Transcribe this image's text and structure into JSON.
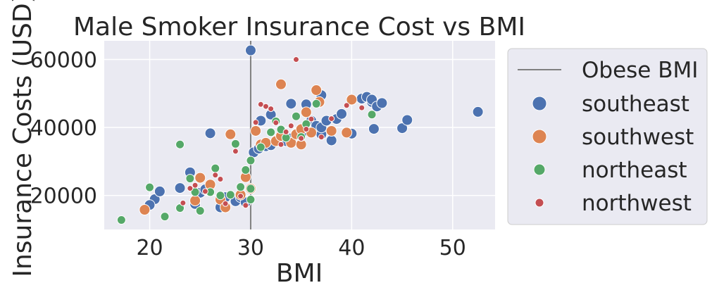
{
  "chart_data": {
    "type": "scatter",
    "title": "Male Smoker Insurance Cost vs BMI",
    "xlabel": "BMI",
    "ylabel": "Insurance Costs (USD)",
    "xlim": [
      15.5,
      54.2
    ],
    "ylim": [
      10000,
      65500
    ],
    "xticks": [
      20,
      30,
      40,
      50
    ],
    "yticks": [
      20000,
      40000,
      60000
    ],
    "ytick_labels": [
      "20000",
      "40000",
      "60000"
    ],
    "grid": true,
    "background": "#eaeaf2",
    "legend_position": "outside-right",
    "reference_line": {
      "label": "Obese BMI",
      "x": 30,
      "color": "#808080"
    },
    "series": [
      {
        "name": "southeast",
        "color": "#4c72b0",
        "marker": "large",
        "points": [
          [
            20.5,
            18900
          ],
          [
            21,
            21200
          ],
          [
            20,
            17200
          ],
          [
            23,
            22200
          ],
          [
            24,
            26800
          ],
          [
            24.5,
            17500
          ],
          [
            25,
            20800
          ],
          [
            25.5,
            21800
          ],
          [
            26,
            38300
          ],
          [
            27,
            16500
          ],
          [
            27.5,
            19500
          ],
          [
            28.5,
            18300
          ],
          [
            29,
            19500
          ],
          [
            29.5,
            18000
          ],
          [
            30,
            62700
          ],
          [
            30.3,
            32700
          ],
          [
            30.8,
            33800
          ],
          [
            31,
            42000
          ],
          [
            31.5,
            34500
          ],
          [
            32,
            43800
          ],
          [
            32,
            34800
          ],
          [
            33,
            37000
          ],
          [
            33.5,
            36000
          ],
          [
            34,
            47000
          ],
          [
            34,
            36800
          ],
          [
            34.5,
            38200
          ],
          [
            35,
            38000
          ],
          [
            35.5,
            46800
          ],
          [
            36,
            42000
          ],
          [
            36.5,
            40500
          ],
          [
            37,
            49500
          ],
          [
            37,
            38000
          ],
          [
            37,
            40000
          ],
          [
            37.5,
            42000
          ],
          [
            38,
            36200
          ],
          [
            38.5,
            42500
          ],
          [
            39,
            44000
          ],
          [
            40,
            38200
          ],
          [
            41,
            48500
          ],
          [
            41.5,
            49000
          ],
          [
            42,
            47500
          ],
          [
            42,
            48200
          ],
          [
            42.5,
            46200
          ],
          [
            42.2,
            39600
          ],
          [
            43,
            47200
          ],
          [
            45,
            39800
          ],
          [
            45.5,
            42200
          ],
          [
            52.5,
            44600
          ]
        ]
      },
      {
        "name": "southwest",
        "color": "#dd8452",
        "marker": "large",
        "points": [
          [
            19.5,
            15800
          ],
          [
            24.5,
            18500
          ],
          [
            25,
            25200
          ],
          [
            26,
            23200
          ],
          [
            27,
            18800
          ],
          [
            27.5,
            16500
          ],
          [
            28,
            38000
          ],
          [
            29,
            20200
          ],
          [
            29.5,
            25400
          ],
          [
            30,
            22000
          ],
          [
            30.5,
            39000
          ],
          [
            31,
            35000
          ],
          [
            31.5,
            35500
          ],
          [
            32.5,
            36000
          ],
          [
            33,
            52700
          ],
          [
            33,
            37500
          ],
          [
            34,
            35500
          ],
          [
            34.5,
            38000
          ],
          [
            35,
            39500
          ],
          [
            35,
            35000
          ],
          [
            35.5,
            44500
          ],
          [
            36,
            38500
          ],
          [
            36.5,
            51000
          ],
          [
            36.8,
            47500
          ],
          [
            38,
            39000
          ],
          [
            39.5,
            38500
          ],
          [
            40,
            48200
          ]
        ]
      },
      {
        "name": "northeast",
        "color": "#55a868",
        "marker": "medium",
        "points": [
          [
            17.2,
            12800
          ],
          [
            20,
            22400
          ],
          [
            21.5,
            13800
          ],
          [
            23,
            16300
          ],
          [
            23,
            35000
          ],
          [
            24,
            25000
          ],
          [
            24.5,
            21000
          ],
          [
            25,
            15500
          ],
          [
            26.5,
            28000
          ],
          [
            26,
            21000
          ],
          [
            27,
            20000
          ],
          [
            28,
            20200
          ],
          [
            28.5,
            35200
          ],
          [
            29,
            22500
          ],
          [
            29.5,
            27500
          ],
          [
            30,
            30300
          ],
          [
            30,
            18800
          ],
          [
            30,
            22000
          ],
          [
            31,
            34200
          ],
          [
            32,
            38600
          ],
          [
            32.5,
            41800
          ],
          [
            33,
            39400
          ],
          [
            33.5,
            37000
          ],
          [
            34.5,
            43300
          ],
          [
            35,
            37200
          ],
          [
            35.5,
            41000
          ],
          [
            36.5,
            47000
          ],
          [
            42,
            43800
          ]
        ]
      },
      {
        "name": "northwest",
        "color": "#c44e52",
        "marker": "small",
        "points": [
          [
            23.3,
            17800
          ],
          [
            24,
            22100
          ],
          [
            24.5,
            23000
          ],
          [
            25.5,
            21200
          ],
          [
            26.5,
            26000
          ],
          [
            27,
            24800
          ],
          [
            27.5,
            17600
          ],
          [
            28.5,
            33000
          ],
          [
            29,
            19800
          ],
          [
            29.5,
            17100
          ],
          [
            30.5,
            41500
          ],
          [
            31,
            46800
          ],
          [
            31.5,
            46200
          ],
          [
            32,
            45500
          ],
          [
            32.5,
            41400
          ],
          [
            33,
            35000
          ],
          [
            33.5,
            38700
          ],
          [
            34,
            40500
          ],
          [
            34.5,
            60000
          ],
          [
            35,
            36800
          ],
          [
            35.5,
            39500
          ],
          [
            36,
            42500
          ],
          [
            37,
            37200
          ],
          [
            38,
            42600
          ],
          [
            39.5,
            46500
          ],
          [
            41,
            45800
          ]
        ]
      }
    ]
  }
}
